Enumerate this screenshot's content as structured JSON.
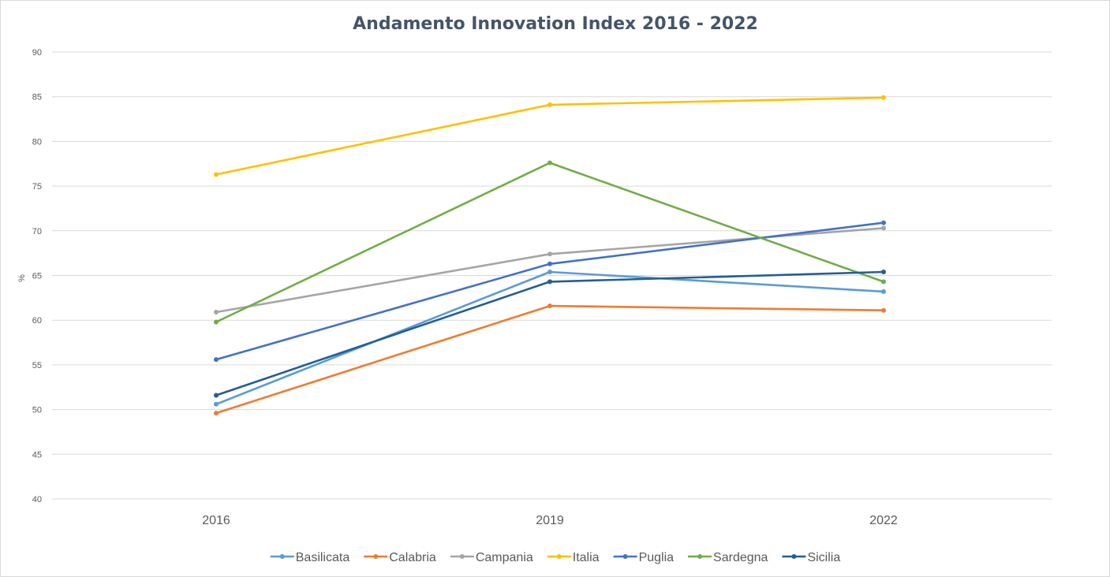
{
  "chart_data": {
    "type": "line",
    "title": "Andamento Innovation Index 2016 - 2022",
    "xlabel": "",
    "ylabel": "%",
    "categories": [
      "2016",
      "2019",
      "2022"
    ],
    "ylim": [
      40,
      90
    ],
    "yticks": [
      40,
      45,
      50,
      55,
      60,
      65,
      70,
      75,
      80,
      85,
      90
    ],
    "grid": true,
    "legend_position": "bottom",
    "series": [
      {
        "name": "Basilicata",
        "color": "#5b9bd5",
        "values": [
          50.6,
          65.4,
          63.2
        ]
      },
      {
        "name": "Calabria",
        "color": "#ed7d31",
        "values": [
          49.6,
          61.6,
          61.1
        ]
      },
      {
        "name": "Campania",
        "color": "#a5a5a5",
        "values": [
          60.9,
          67.4,
          70.3
        ]
      },
      {
        "name": "Italia",
        "color": "#ffc000",
        "values": [
          76.3,
          84.1,
          84.9
        ]
      },
      {
        "name": "Puglia",
        "color": "#4472c4",
        "values": [
          55.6,
          66.3,
          70.9
        ]
      },
      {
        "name": "Sardegna",
        "color": "#70ad47",
        "values": [
          59.8,
          77.6,
          64.3
        ]
      },
      {
        "name": "Sicilia",
        "color": "#255e91",
        "values": [
          51.6,
          64.3,
          65.4
        ]
      }
    ]
  }
}
